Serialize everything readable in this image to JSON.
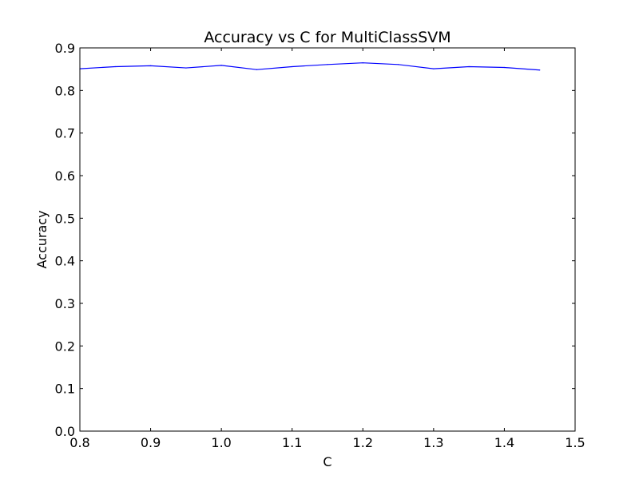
{
  "chart_data": {
    "type": "line",
    "title": "Accuracy vs C for MultiClassSVM",
    "xlabel": "C",
    "ylabel": "Accuracy",
    "xlim": [
      0.8,
      1.5
    ],
    "ylim": [
      0.0,
      0.9
    ],
    "xticks": [
      "0.8",
      "0.9",
      "1.0",
      "1.1",
      "1.2",
      "1.3",
      "1.4",
      "1.5"
    ],
    "yticks": [
      "0.0",
      "0.1",
      "0.2",
      "0.3",
      "0.4",
      "0.5",
      "0.6",
      "0.7",
      "0.8",
      "0.9"
    ],
    "grid": false,
    "legend": false,
    "series": [
      {
        "color": "#0000ff",
        "x": [
          0.8,
          0.85,
          0.9,
          0.95,
          1.0,
          1.05,
          1.1,
          1.15,
          1.2,
          1.25,
          1.3,
          1.35,
          1.4,
          1.45
        ],
        "y": [
          0.851,
          0.856,
          0.858,
          0.853,
          0.859,
          0.849,
          0.856,
          0.861,
          0.865,
          0.861,
          0.851,
          0.856,
          0.854,
          0.848
        ]
      }
    ]
  }
}
